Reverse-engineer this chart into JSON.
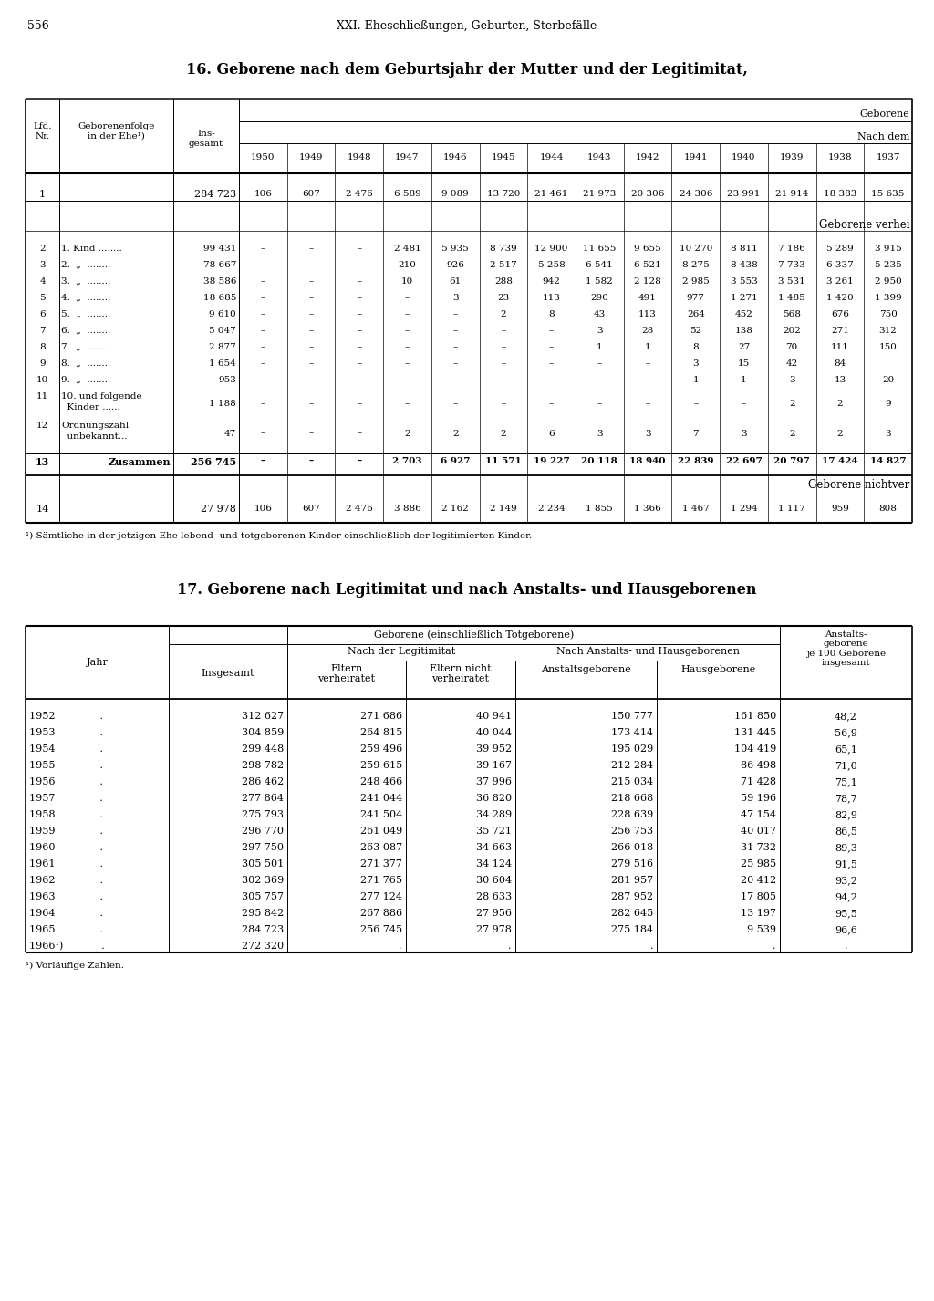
{
  "page_number": "556",
  "page_header": "XXI. Eheschließungen, Geburten, Sterbefälle",
  "table1_title": "16. Geborene nach dem Geburtsjahr der Mutter und der Legitimitat,",
  "table1_years": [
    "1950",
    "1949",
    "1948",
    "1947",
    "1946",
    "1945",
    "1944",
    "1943",
    "1942",
    "1941",
    "1940",
    "1939",
    "1938",
    "1937"
  ],
  "table1_footnote": "¹) Sämtliche in der jetzigen Ehe lebend- und totgeborenen Kinder einschließlich der legitimierten Kinder.",
  "row1": {
    "nr": "1",
    "gesamt": "284 723",
    "values": [
      "106",
      "607",
      "2 476",
      "6 589",
      "9 089",
      "13 720",
      "21 461",
      "21 973",
      "20 306",
      "24 306",
      "23 991",
      "21 914",
      "18 383",
      "15 635"
    ]
  },
  "verhei_rows": [
    {
      "nr": "2",
      "label": "1. Kind ........",
      "gesamt": "99 431",
      "vals": [
        "–",
        "–",
        "–",
        "2 481",
        "5 935",
        "8 739",
        "12 900",
        "11 655",
        "9 655",
        "10 270",
        "8 811",
        "7 186",
        "5 289",
        "3 915"
      ]
    },
    {
      "nr": "3",
      "label": "2.  „  ........",
      "gesamt": "78 667",
      "vals": [
        "–",
        "–",
        "–",
        "210",
        "926",
        "2 517",
        "5 258",
        "6 541",
        "6 521",
        "8 275",
        "8 438",
        "7 733",
        "6 337",
        "5 235"
      ]
    },
    {
      "nr": "4",
      "label": "3.  „  ........",
      "gesamt": "38 586",
      "vals": [
        "–",
        "–",
        "–",
        "10",
        "61",
        "288",
        "942",
        "1 582",
        "2 128",
        "2 985",
        "3 553",
        "3 531",
        "3 261",
        "2 950"
      ]
    },
    {
      "nr": "5",
      "label": "4.  „  ........",
      "gesamt": "18 685",
      "vals": [
        "–",
        "–",
        "–",
        "–",
        "3",
        "23",
        "113",
        "290",
        "491",
        "977",
        "1 271",
        "1 485",
        "1 420",
        "1 399"
      ]
    },
    {
      "nr": "6",
      "label": "5.  „  ........",
      "gesamt": "9 610",
      "vals": [
        "–",
        "–",
        "–",
        "–",
        "–",
        "2",
        "8",
        "43",
        "113",
        "264",
        "452",
        "568",
        "676",
        "750"
      ]
    },
    {
      "nr": "7",
      "label": "6.  „  ........",
      "gesamt": "5 047",
      "vals": [
        "–",
        "–",
        "–",
        "–",
        "–",
        "–",
        "–",
        "3",
        "28",
        "52",
        "138",
        "202",
        "271",
        "312"
      ]
    },
    {
      "nr": "8",
      "label": "7.  „  ........",
      "gesamt": "2 877",
      "vals": [
        "–",
        "–",
        "–",
        "–",
        "–",
        "–",
        "–",
        "1",
        "1",
        "8",
        "27",
        "70",
        "111",
        "150"
      ]
    },
    {
      "nr": "9",
      "label": "8.  „  ........",
      "gesamt": "1 654",
      "vals": [
        "–",
        "–",
        "–",
        "–",
        "–",
        "–",
        "–",
        "–",
        "–",
        "3",
        "15",
        "42",
        "84",
        ""
      ]
    },
    {
      "nr": "10",
      "label": "9.  „  ........",
      "gesamt": "953",
      "vals": [
        "–",
        "–",
        "–",
        "–",
        "–",
        "–",
        "–",
        "–",
        "–",
        "1",
        "1",
        "3",
        "13",
        "20"
      ]
    },
    {
      "nr": "11",
      "label": "10. und folgende",
      "label2": "  Kinder ......",
      "gesamt": "1 188",
      "vals": [
        "–",
        "–",
        "–",
        "–",
        "–",
        "–",
        "–",
        "–",
        "–",
        "–",
        "–",
        "2",
        "2",
        "9"
      ]
    },
    {
      "nr": "12",
      "label": "Ordnungszahl",
      "label2": "  unbekannt...",
      "gesamt": "47",
      "vals": [
        "–",
        "–",
        "–",
        "2",
        "2",
        "2",
        "6",
        "3",
        "3",
        "7",
        "3",
        "2",
        "2",
        "3"
      ]
    }
  ],
  "zusammen": {
    "nr": "13",
    "label": "Zusammen",
    "gesamt": "256 745",
    "vals": [
      "–",
      "–",
      "–",
      "2 703",
      "6 927",
      "11 571",
      "19 227",
      "20 118",
      "18 940",
      "22 839",
      "22 697",
      "20 797",
      "17 424",
      "14 827"
    ]
  },
  "row14": {
    "nr": "14",
    "gesamt": "27 978",
    "vals": [
      "106",
      "607",
      "2 476",
      "3 886",
      "2 162",
      "2 149",
      "2 234",
      "1 855",
      "1 366",
      "1 467",
      "1 294",
      "1 117",
      "959",
      "808"
    ]
  },
  "table2_title": "17. Geborene nach Legitimitat und nach Anstalts- und Hausgeborenen",
  "table2_rows": [
    {
      "year": "1952              .",
      "insgesamt": "312 627",
      "eltern_verh": "271 686",
      "eltern_nicht": "40 941",
      "anstalts": "150 777",
      "haus": "161 850",
      "je100": "48,2"
    },
    {
      "year": "1953              .",
      "insgesamt": "304 859",
      "eltern_verh": "264 815",
      "eltern_nicht": "40 044",
      "anstalts": "173 414",
      "haus": "131 445",
      "je100": "56,9"
    },
    {
      "year": "1954              .",
      "insgesamt": "299 448",
      "eltern_verh": "259 496",
      "eltern_nicht": "39 952",
      "anstalts": "195 029",
      "haus": "104 419",
      "je100": "65,1"
    },
    {
      "year": "1955              .",
      "insgesamt": "298 782",
      "eltern_verh": "259 615",
      "eltern_nicht": "39 167",
      "anstalts": "212 284",
      "haus": "86 498",
      "je100": "71,0"
    },
    {
      "year": "1956              .",
      "insgesamt": "286 462",
      "eltern_verh": "248 466",
      "eltern_nicht": "37 996",
      "anstalts": "215 034",
      "haus": "71 428",
      "je100": "75,1"
    },
    {
      "year": "1957              .",
      "insgesamt": "277 864",
      "eltern_verh": "241 044",
      "eltern_nicht": "36 820",
      "anstalts": "218 668",
      "haus": "59 196",
      "je100": "78,7"
    },
    {
      "year": "1958              .",
      "insgesamt": "275 793",
      "eltern_verh": "241 504",
      "eltern_nicht": "34 289",
      "anstalts": "228 639",
      "haus": "47 154",
      "je100": "82,9"
    },
    {
      "year": "1959              .",
      "insgesamt": "296 770",
      "eltern_verh": "261 049",
      "eltern_nicht": "35 721",
      "anstalts": "256 753",
      "haus": "40 017",
      "je100": "86,5"
    },
    {
      "year": "1960              .",
      "insgesamt": "297 750",
      "eltern_verh": "263 087",
      "eltern_nicht": "34 663",
      "anstalts": "266 018",
      "haus": "31 732",
      "je100": "89,3"
    },
    {
      "year": "1961              .",
      "insgesamt": "305 501",
      "eltern_verh": "271 377",
      "eltern_nicht": "34 124",
      "anstalts": "279 516",
      "haus": "25 985",
      "je100": "91,5"
    },
    {
      "year": "1962              .",
      "insgesamt": "302 369",
      "eltern_verh": "271 765",
      "eltern_nicht": "30 604",
      "anstalts": "281 957",
      "haus": "20 412",
      "je100": "93,2"
    },
    {
      "year": "1963              .",
      "insgesamt": "305 757",
      "eltern_verh": "277 124",
      "eltern_nicht": "28 633",
      "anstalts": "287 952",
      "haus": "17 805",
      "je100": "94,2"
    },
    {
      "year": "1964              .",
      "insgesamt": "295 842",
      "eltern_verh": "267 886",
      "eltern_nicht": "27 956",
      "anstalts": "282 645",
      "haus": "13 197",
      "je100": "95,5"
    },
    {
      "year": "1965              .",
      "insgesamt": "284 723",
      "eltern_verh": "256 745",
      "eltern_nicht": "27 978",
      "anstalts": "275 184",
      "haus": "9 539",
      "je100": "96,6"
    },
    {
      "year": "1966¹)            .",
      "insgesamt": "272 320",
      "eltern_verh": ".",
      "eltern_nicht": ".",
      "anstalts": ".",
      "haus": ".",
      "je100": "."
    }
  ],
  "table2_footnote": "¹) Vorläufige Zahlen."
}
